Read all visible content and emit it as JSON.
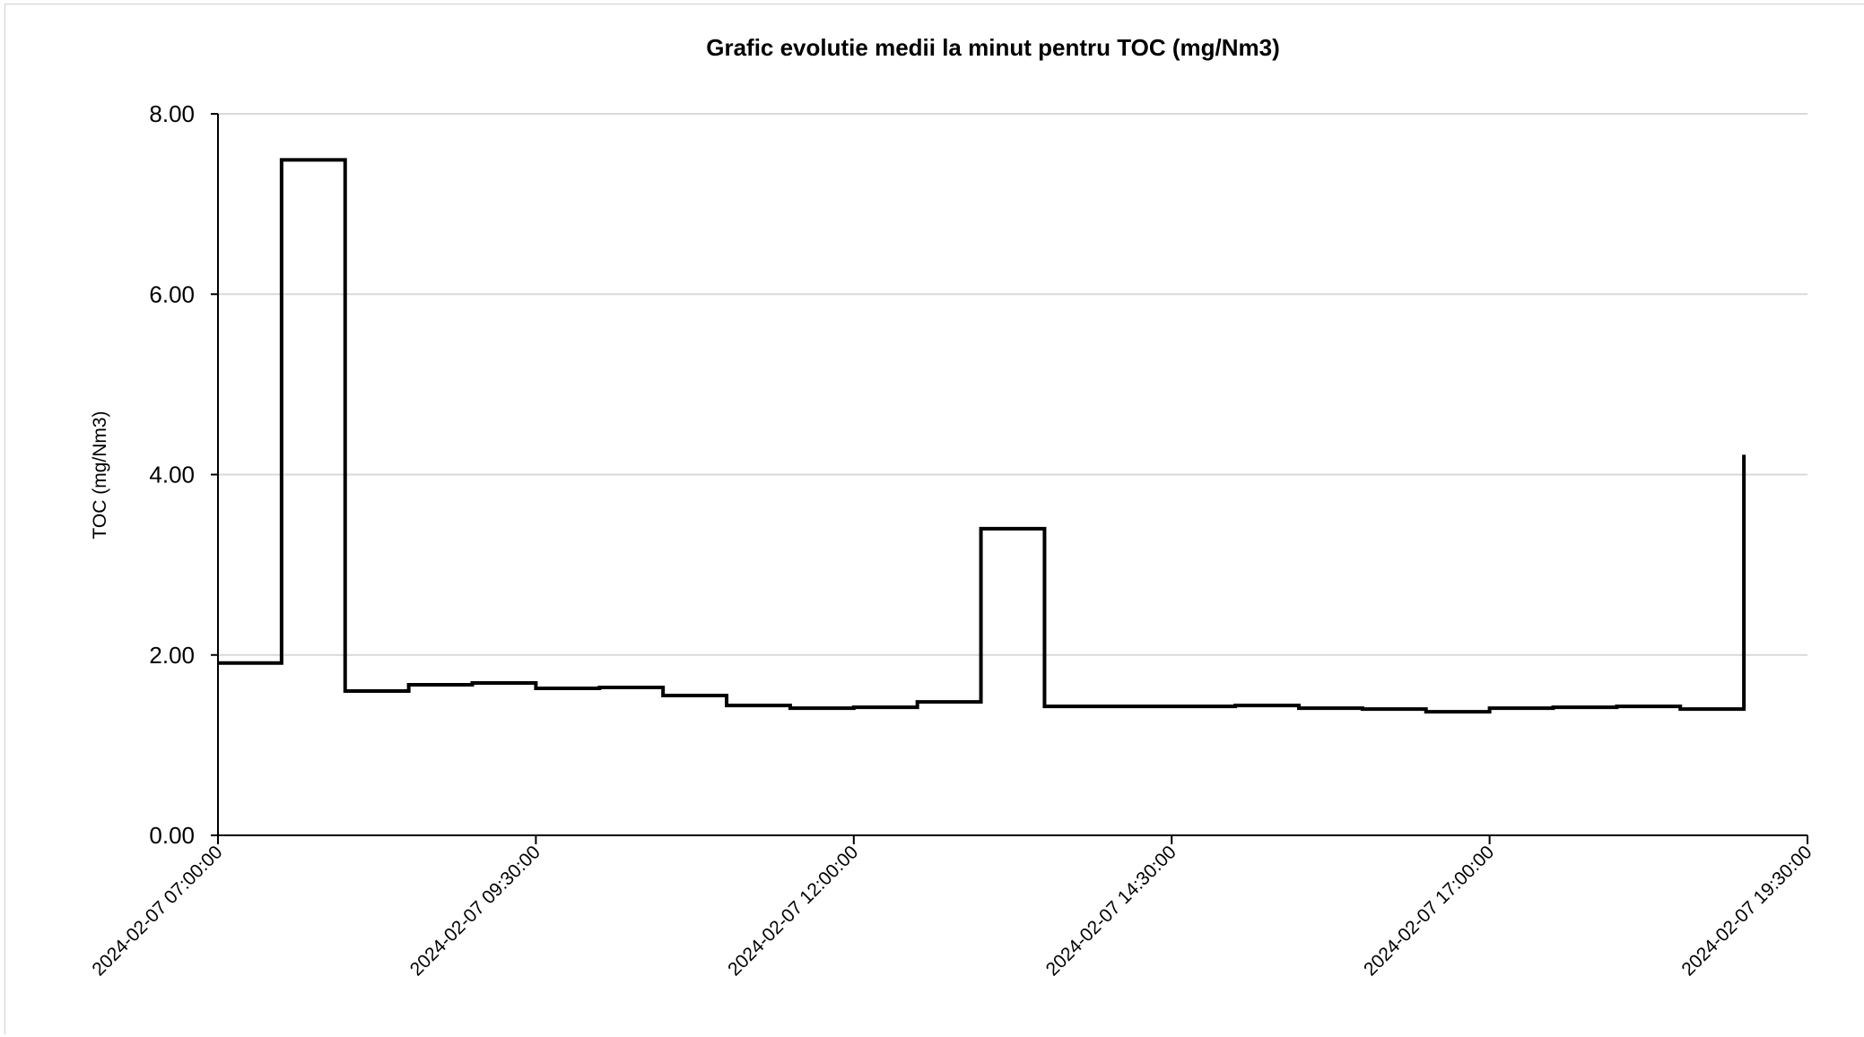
{
  "chart_data": {
    "type": "line",
    "step": true,
    "title": "Grafic evolutie medii la minut pentru TOC (mg/Nm3)",
    "xlabel": "",
    "ylabel": "TOC (mg/Nm3)",
    "ylim": [
      0,
      8
    ],
    "yticks": [
      "0.00",
      "2.00",
      "4.00",
      "6.00",
      "8.00"
    ],
    "xlim": [
      "2024-02-07 07:00:00",
      "2024-02-07 19:30:00"
    ],
    "xticks": [
      "2024-02-07 07:00:00",
      "2024-02-07 09:30:00",
      "2024-02-07 12:00:00",
      "2024-02-07 14:30:00",
      "2024-02-07 17:00:00",
      "2024-02-07 19:30:00"
    ],
    "grid": true,
    "legend": "none",
    "series": [
      {
        "color": "#000000",
        "points": [
          {
            "x": "2024-02-07 07:00:00",
            "y": 1.91
          },
          {
            "x": "2024-02-07 07:30:00",
            "y": 7.49
          },
          {
            "x": "2024-02-07 08:00:00",
            "y": 1.6
          },
          {
            "x": "2024-02-07 08:30:00",
            "y": 1.67
          },
          {
            "x": "2024-02-07 09:00:00",
            "y": 1.69
          },
          {
            "x": "2024-02-07 09:30:00",
            "y": 1.63
          },
          {
            "x": "2024-02-07 10:00:00",
            "y": 1.64
          },
          {
            "x": "2024-02-07 10:30:00",
            "y": 1.55
          },
          {
            "x": "2024-02-07 11:00:00",
            "y": 1.44
          },
          {
            "x": "2024-02-07 11:30:00",
            "y": 1.41
          },
          {
            "x": "2024-02-07 12:00:00",
            "y": 1.42
          },
          {
            "x": "2024-02-07 12:30:00",
            "y": 1.48
          },
          {
            "x": "2024-02-07 13:00:00",
            "y": 3.4
          },
          {
            "x": "2024-02-07 13:30:00",
            "y": 1.43
          },
          {
            "x": "2024-02-07 14:00:00",
            "y": 1.43
          },
          {
            "x": "2024-02-07 14:30:00",
            "y": 1.43
          },
          {
            "x": "2024-02-07 15:00:00",
            "y": 1.44
          },
          {
            "x": "2024-02-07 15:30:00",
            "y": 1.41
          },
          {
            "x": "2024-02-07 16:00:00",
            "y": 1.4
          },
          {
            "x": "2024-02-07 16:30:00",
            "y": 1.37
          },
          {
            "x": "2024-02-07 17:00:00",
            "y": 1.41
          },
          {
            "x": "2024-02-07 17:30:00",
            "y": 1.42
          },
          {
            "x": "2024-02-07 18:00:00",
            "y": 1.43
          },
          {
            "x": "2024-02-07 18:30:00",
            "y": 1.4
          },
          {
            "x": "2024-02-07 19:00:00",
            "y": 4.22
          }
        ]
      }
    ]
  }
}
